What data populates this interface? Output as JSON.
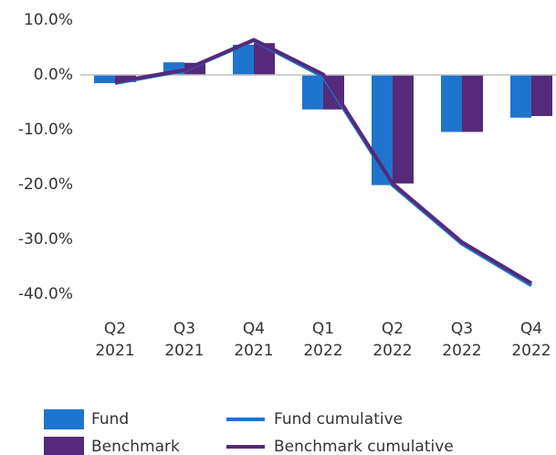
{
  "chart_data": {
    "type": "bar",
    "categories": [
      [
        "Q2",
        "2021"
      ],
      [
        "Q3",
        "2021"
      ],
      [
        "Q4",
        "2021"
      ],
      [
        "Q1",
        "2022"
      ],
      [
        "Q2",
        "2022"
      ],
      [
        "Q3",
        "2022"
      ],
      [
        "Q4",
        "2022"
      ]
    ],
    "series": [
      {
        "name": "Fund",
        "type": "bar",
        "color": "#1f74cd",
        "values": [
          -1.5,
          2.3,
          5.5,
          -6.3,
          -20.1,
          -10.4,
          -7.8
        ]
      },
      {
        "name": "Benchmark",
        "type": "bar",
        "color": "#552a7a",
        "values": [
          -1.3,
          2.2,
          5.8,
          -6.3,
          -19.8,
          -10.4,
          -7.5
        ]
      },
      {
        "name": "Fund cumulative",
        "type": "line",
        "color": "#1f74cd",
        "values": [
          -1.5,
          0.8,
          6.3,
          -0.3,
          -20.1,
          -30.8,
          -38.4
        ]
      },
      {
        "name": "Benchmark cumulative",
        "type": "line",
        "color": "#552a7a",
        "values": [
          -1.3,
          0.9,
          6.4,
          0.1,
          -19.8,
          -30.5,
          -38.0
        ]
      }
    ],
    "ylim": [
      -40,
      10
    ],
    "yticks": [
      {
        "value": 10,
        "label": "10.0%"
      },
      {
        "value": 0,
        "label": "0.0%"
      },
      {
        "value": -10,
        "label": "-10.0%"
      },
      {
        "value": -20,
        "label": "-20.0%"
      },
      {
        "value": -30,
        "label": "-30.0%"
      },
      {
        "value": -40,
        "label": "-40.0%"
      }
    ],
    "legend": "bottom"
  }
}
